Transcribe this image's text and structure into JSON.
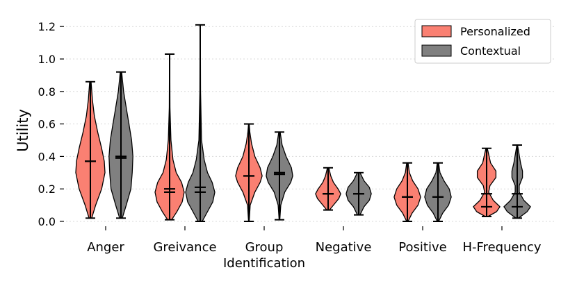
{
  "chart_data": {
    "type": "violin",
    "title": "",
    "xlabel": "",
    "ylabel": "Utility",
    "ylim": [
      0,
      1.25
    ],
    "yticks": [
      "0.0",
      "0.2",
      "0.4",
      "0.6",
      "0.8",
      "1.0",
      "1.2"
    ],
    "categories": [
      "Anger",
      "Greivance",
      "Group Identification",
      "Negative",
      "Positive",
      "H-Frequency"
    ],
    "category_lines": [
      [
        "Anger"
      ],
      [
        "Greivance"
      ],
      [
        "Group",
        "Identification"
      ],
      [
        "Negative"
      ],
      [
        "Positive"
      ],
      [
        "H-Frequency"
      ]
    ],
    "legend_position": "top-right",
    "series": [
      {
        "name": "Personalized",
        "color": "#fa8072",
        "violins": [
          {
            "min": 0.02,
            "max": 0.86,
            "median": 0.37,
            "mean": 0.37,
            "profile": [
              [
                0.02,
                0.02
              ],
              [
                0.1,
                0.08
              ],
              [
                0.2,
                0.17
              ],
              [
                0.3,
                0.22
              ],
              [
                0.37,
                0.21
              ],
              [
                0.45,
                0.17
              ],
              [
                0.55,
                0.11
              ],
              [
                0.65,
                0.06
              ],
              [
                0.75,
                0.03
              ],
              [
                0.86,
                0.01
              ]
            ]
          },
          {
            "min": 0.01,
            "max": 1.03,
            "median": 0.18,
            "mean": 0.2,
            "profile": [
              [
                0.01,
                0.03
              ],
              [
                0.06,
                0.11
              ],
              [
                0.12,
                0.19
              ],
              [
                0.18,
                0.22
              ],
              [
                0.24,
                0.18
              ],
              [
                0.3,
                0.1
              ],
              [
                0.38,
                0.05
              ],
              [
                0.5,
                0.02
              ],
              [
                0.7,
                0.005
              ],
              [
                1.03,
                0.002
              ]
            ]
          },
          {
            "min": 0.0,
            "max": 0.6,
            "median": 0.28,
            "mean": 0.28,
            "profile": [
              [
                0.0,
                0.005
              ],
              [
                0.1,
                0.02
              ],
              [
                0.18,
                0.09
              ],
              [
                0.24,
                0.17
              ],
              [
                0.28,
                0.2
              ],
              [
                0.33,
                0.17
              ],
              [
                0.4,
                0.09
              ],
              [
                0.48,
                0.04
              ],
              [
                0.55,
                0.015
              ],
              [
                0.6,
                0.005
              ]
            ]
          },
          {
            "min": 0.07,
            "max": 0.33,
            "median": 0.17,
            "mean": 0.17,
            "profile": [
              [
                0.07,
                0.02
              ],
              [
                0.1,
                0.08
              ],
              [
                0.14,
                0.16
              ],
              [
                0.17,
                0.19
              ],
              [
                0.2,
                0.15
              ],
              [
                0.24,
                0.08
              ],
              [
                0.28,
                0.04
              ],
              [
                0.33,
                0.01
              ]
            ]
          },
          {
            "min": 0.0,
            "max": 0.36,
            "median": 0.15,
            "mean": 0.15,
            "profile": [
              [
                0.0,
                0.01
              ],
              [
                0.05,
                0.07
              ],
              [
                0.1,
                0.16
              ],
              [
                0.15,
                0.2
              ],
              [
                0.2,
                0.16
              ],
              [
                0.25,
                0.08
              ],
              [
                0.3,
                0.03
              ],
              [
                0.36,
                0.01
              ]
            ]
          },
          {
            "min": 0.03,
            "max": 0.45,
            "median": 0.09,
            "mean": 0.17,
            "profile": [
              [
                0.03,
                0.02
              ],
              [
                0.06,
                0.15
              ],
              [
                0.09,
                0.2
              ],
              [
                0.13,
                0.1
              ],
              [
                0.18,
                0.03
              ],
              [
                0.22,
                0.05
              ],
              [
                0.27,
                0.14
              ],
              [
                0.31,
                0.14
              ],
              [
                0.36,
                0.06
              ],
              [
                0.45,
                0.01
              ]
            ]
          }
        ]
      },
      {
        "name": "Contextual",
        "color": "#808080",
        "violins": [
          {
            "min": 0.02,
            "max": 0.92,
            "median": 0.39,
            "mean": 0.4,
            "profile": [
              [
                0.02,
                0.02
              ],
              [
                0.1,
                0.08
              ],
              [
                0.2,
                0.15
              ],
              [
                0.3,
                0.17
              ],
              [
                0.4,
                0.18
              ],
              [
                0.5,
                0.16
              ],
              [
                0.6,
                0.12
              ],
              [
                0.7,
                0.08
              ],
              [
                0.8,
                0.04
              ],
              [
                0.92,
                0.01
              ]
            ]
          },
          {
            "min": 0.0,
            "max": 1.21,
            "median": 0.18,
            "mean": 0.21,
            "profile": [
              [
                0.0,
                0.03
              ],
              [
                0.06,
                0.11
              ],
              [
                0.12,
                0.19
              ],
              [
                0.18,
                0.22
              ],
              [
                0.24,
                0.18
              ],
              [
                0.3,
                0.11
              ],
              [
                0.38,
                0.06
              ],
              [
                0.5,
                0.02
              ],
              [
                0.8,
                0.005
              ],
              [
                1.21,
                0.002
              ]
            ]
          },
          {
            "min": 0.01,
            "max": 0.55,
            "median": 0.29,
            "mean": 0.3,
            "profile": [
              [
                0.01,
                0.005
              ],
              [
                0.1,
                0.02
              ],
              [
                0.18,
                0.08
              ],
              [
                0.24,
                0.17
              ],
              [
                0.28,
                0.2
              ],
              [
                0.33,
                0.18
              ],
              [
                0.4,
                0.1
              ],
              [
                0.47,
                0.04
              ],
              [
                0.55,
                0.01
              ]
            ]
          },
          {
            "min": 0.04,
            "max": 0.3,
            "median": 0.17,
            "mean": 0.17,
            "profile": [
              [
                0.04,
                0.02
              ],
              [
                0.09,
                0.08
              ],
              [
                0.13,
                0.16
              ],
              [
                0.17,
                0.19
              ],
              [
                0.21,
                0.16
              ],
              [
                0.25,
                0.08
              ],
              [
                0.3,
                0.02
              ]
            ]
          },
          {
            "min": 0.0,
            "max": 0.36,
            "median": 0.15,
            "mean": 0.15,
            "profile": [
              [
                0.0,
                0.01
              ],
              [
                0.05,
                0.07
              ],
              [
                0.1,
                0.16
              ],
              [
                0.15,
                0.2
              ],
              [
                0.2,
                0.17
              ],
              [
                0.25,
                0.09
              ],
              [
                0.3,
                0.03
              ],
              [
                0.36,
                0.01
              ]
            ]
          },
          {
            "min": 0.02,
            "max": 0.47,
            "median": 0.09,
            "mean": 0.17,
            "profile": [
              [
                0.02,
                0.02
              ],
              [
                0.06,
                0.15
              ],
              [
                0.09,
                0.2
              ],
              [
                0.13,
                0.1
              ],
              [
                0.18,
                0.03
              ],
              [
                0.22,
                0.03
              ],
              [
                0.27,
                0.08
              ],
              [
                0.31,
                0.08
              ],
              [
                0.36,
                0.05
              ],
              [
                0.47,
                0.005
              ]
            ]
          }
        ]
      }
    ]
  }
}
